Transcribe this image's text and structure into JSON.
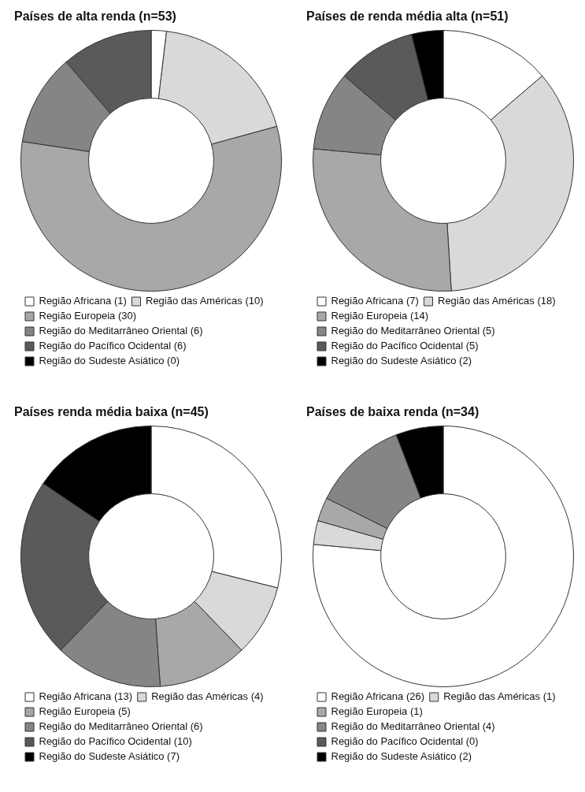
{
  "chart_data": [
    {
      "type": "donut",
      "title": "Países de alta renda (n=53)",
      "categories": [
        "Região Africana (1)",
        "Região das Américas (10)",
        "Região Europeia (30)",
        "Região do Meditarrâneo Oriental (6)",
        "Região do Pacífico Ocidental (6)",
        "Região do Sudeste Asiático (0)"
      ],
      "values": [
        1,
        10,
        30,
        6,
        6,
        0
      ],
      "colors": [
        "#ffffff",
        "#d9d9d9",
        "#a8a8a8",
        "#858585",
        "#5a5a5a",
        "#000000"
      ],
      "legend": "bottom"
    },
    {
      "type": "donut",
      "title": "Países de renda média alta (n=51)",
      "categories": [
        "Região Africana (7)",
        "Região das Américas (18)",
        "Região Europeia (14)",
        "Região do Meditarrâneo Oriental (5)",
        "Região do Pacífico Ocidental (5)",
        "Região do Sudeste Asiático (2)"
      ],
      "values": [
        7,
        18,
        14,
        5,
        5,
        2
      ],
      "colors": [
        "#ffffff",
        "#d9d9d9",
        "#a8a8a8",
        "#858585",
        "#5a5a5a",
        "#000000"
      ],
      "legend": "bottom"
    },
    {
      "type": "donut",
      "title": "Países renda média baixa (n=45)",
      "categories": [
        "Região Africana (13)",
        "Região das Américas (4)",
        "Região Europeia (5)",
        "Região do Meditarrâneo Oriental (6)",
        "Região do Pacífico Ocidental (10)",
        "Região do Sudeste Asiático (7)"
      ],
      "values": [
        13,
        4,
        5,
        6,
        10,
        7
      ],
      "colors": [
        "#ffffff",
        "#d9d9d9",
        "#a8a8a8",
        "#858585",
        "#5a5a5a",
        "#000000"
      ],
      "legend": "bottom"
    },
    {
      "type": "donut",
      "title": "Países de baixa renda (n=34)",
      "categories": [
        "Região Africana (26)",
        "Região das Américas (1)",
        "Região Europeia (1)",
        "Região do Meditarrâneo Oriental (4)",
        "Região do Pacífico Ocidental (0)",
        "Região do Sudeste Asiático (2)"
      ],
      "values": [
        26,
        1,
        1,
        4,
        0,
        2
      ],
      "colors": [
        "#ffffff",
        "#d9d9d9",
        "#a8a8a8",
        "#858585",
        "#5a5a5a",
        "#000000"
      ],
      "legend": "bottom"
    }
  ]
}
